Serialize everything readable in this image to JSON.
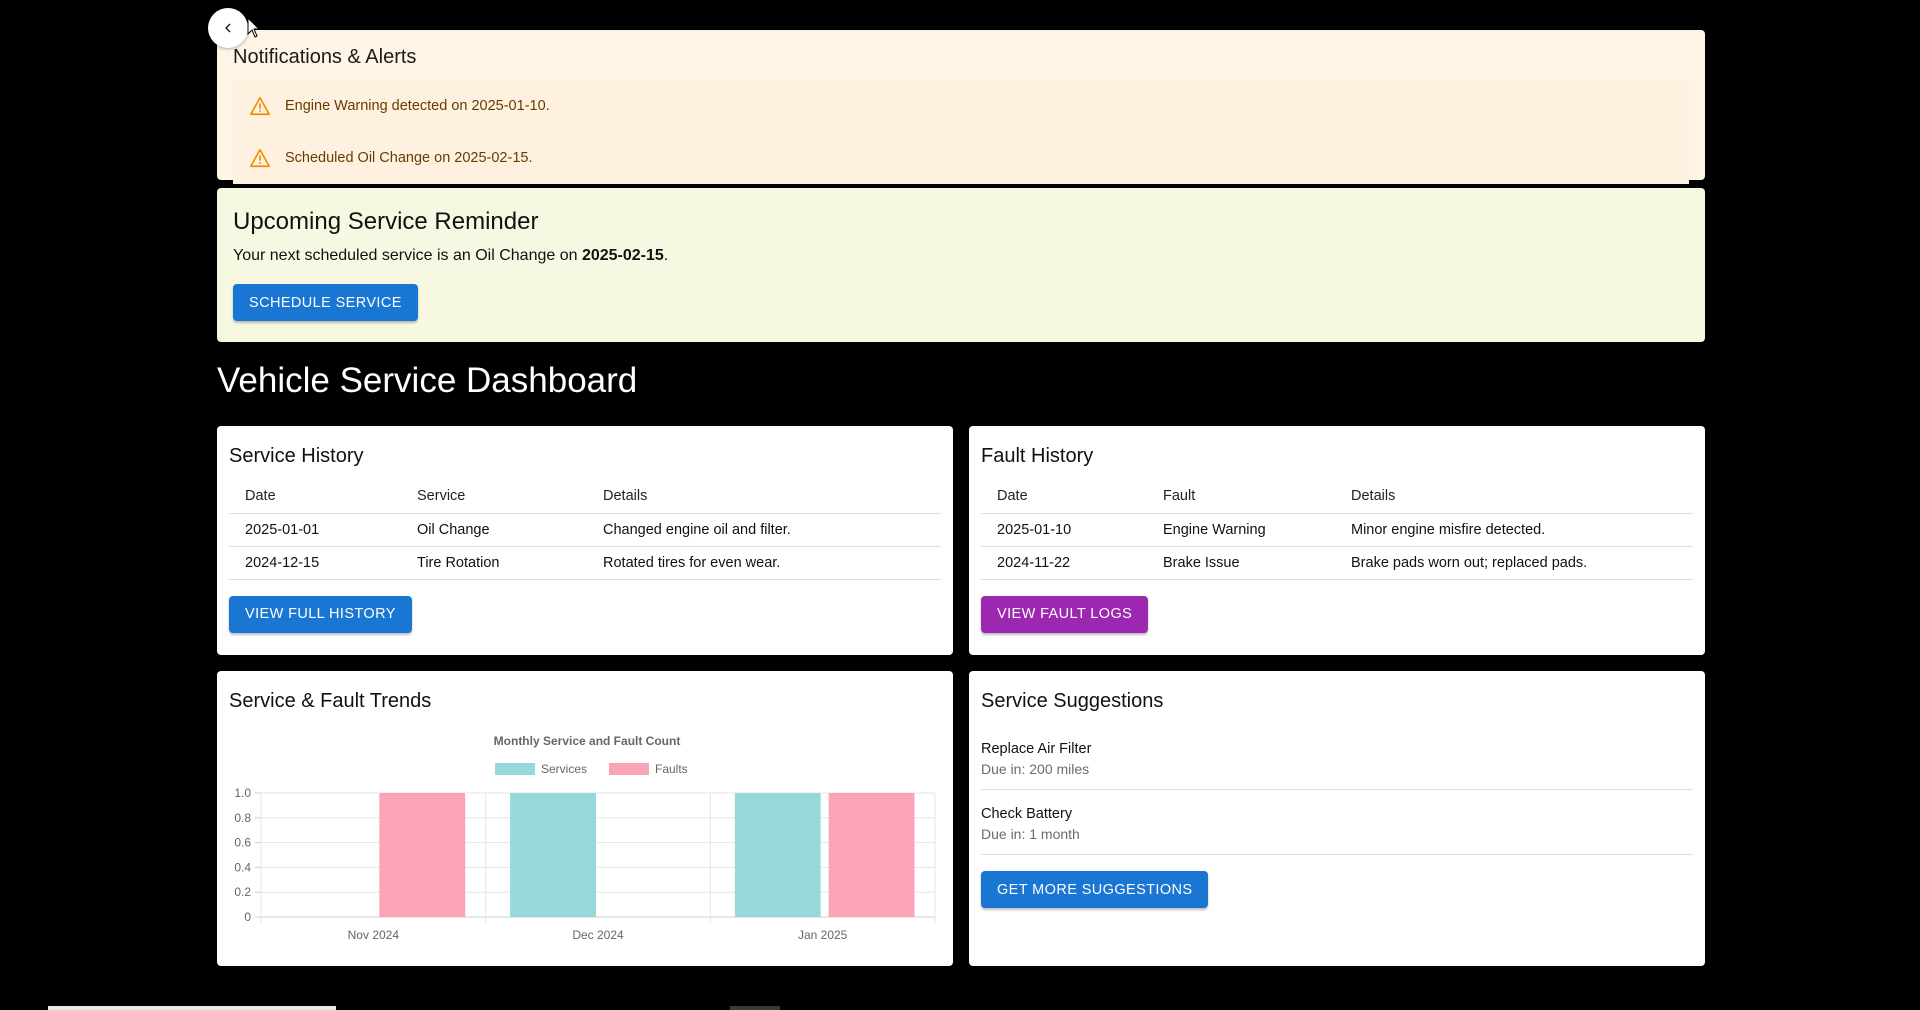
{
  "alerts": {
    "title": "Notifications & Alerts",
    "items": [
      {
        "icon": "warning-icon",
        "text": "Engine Warning detected on 2025-01-10."
      },
      {
        "icon": "warning-icon",
        "text": "Scheduled Oil Change on 2025-02-15."
      }
    ]
  },
  "reminder": {
    "title": "Upcoming Service Reminder",
    "text_prefix": "Your next scheduled service is an Oil Change on ",
    "date": "2025-02-15",
    "text_suffix": ".",
    "button": "Schedule Service"
  },
  "dashboard": {
    "title": "Vehicle Service Dashboard"
  },
  "service_history": {
    "title": "Service History",
    "columns": [
      "Date",
      "Service",
      "Details"
    ],
    "rows": [
      [
        "2025-01-01",
        "Oil Change",
        "Changed engine oil and filter."
      ],
      [
        "2024-12-15",
        "Tire Rotation",
        "Rotated tires for even wear."
      ]
    ],
    "button": "View Full History"
  },
  "fault_history": {
    "title": "Fault History",
    "columns": [
      "Date",
      "Fault",
      "Details"
    ],
    "rows": [
      [
        "2025-01-10",
        "Engine Warning",
        "Minor engine misfire detected."
      ],
      [
        "2024-11-22",
        "Brake Issue",
        "Brake pads worn out; replaced pads."
      ]
    ],
    "button": "View Fault Logs"
  },
  "trends": {
    "title": "Service & Fault Trends"
  },
  "chart_data": {
    "type": "bar",
    "title": "Monthly Service and Fault Count",
    "categories": [
      "Nov 2024",
      "Dec 2024",
      "Jan 2025"
    ],
    "series": [
      {
        "name": "Services",
        "values": [
          0,
          1,
          1
        ],
        "color": "#96d9da"
      },
      {
        "name": "Faults",
        "values": [
          1,
          0,
          1
        ],
        "color": "#fba3b7"
      }
    ],
    "ylim": [
      0,
      1
    ],
    "yticks": [
      "0",
      "0.2",
      "0.4",
      "0.6",
      "0.8",
      "1.0"
    ],
    "legend": "top",
    "grid": true
  },
  "suggestions": {
    "title": "Service Suggestions",
    "items": [
      {
        "name": "Replace Air Filter",
        "due": "Due in: 200 miles"
      },
      {
        "name": "Check Battery",
        "due": "Due in: 1 month"
      }
    ],
    "button": "Get More Suggestions"
  },
  "colors": {
    "primary": "#1976d2",
    "secondary": "#9c27b0",
    "warning": "#ed8f03"
  }
}
